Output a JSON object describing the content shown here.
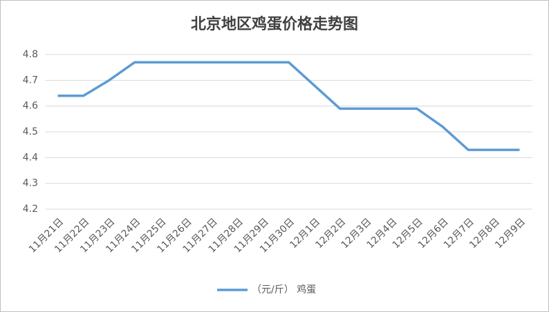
{
  "chart_data": {
    "type": "line",
    "title": "北京地区鸡蛋价格走势图",
    "categories": [
      "11月21日",
      "11月22日",
      "11月23日",
      "11月24日",
      "11月25日",
      "11月26日",
      "11月27日",
      "11月28日",
      "11月29日",
      "11月30日",
      "12月1日",
      "12月2日",
      "12月3日",
      "12月4日",
      "12月5日",
      "12月6日",
      "12月7日",
      "12月8日",
      "12月9日"
    ],
    "series": [
      {
        "name": "（元/斤） 鸡蛋",
        "color": "#5b9bd5",
        "values": [
          4.64,
          4.64,
          4.7,
          4.77,
          4.77,
          4.77,
          4.77,
          4.77,
          4.77,
          4.77,
          4.68,
          4.59,
          4.59,
          4.59,
          4.59,
          4.52,
          4.43,
          4.43,
          4.43
        ]
      }
    ],
    "ylim": [
      4.2,
      4.8
    ],
    "yticks": [
      4.2,
      4.3,
      4.4,
      4.5,
      4.6,
      4.7,
      4.8
    ],
    "grid": true,
    "legend": "bottom"
  }
}
